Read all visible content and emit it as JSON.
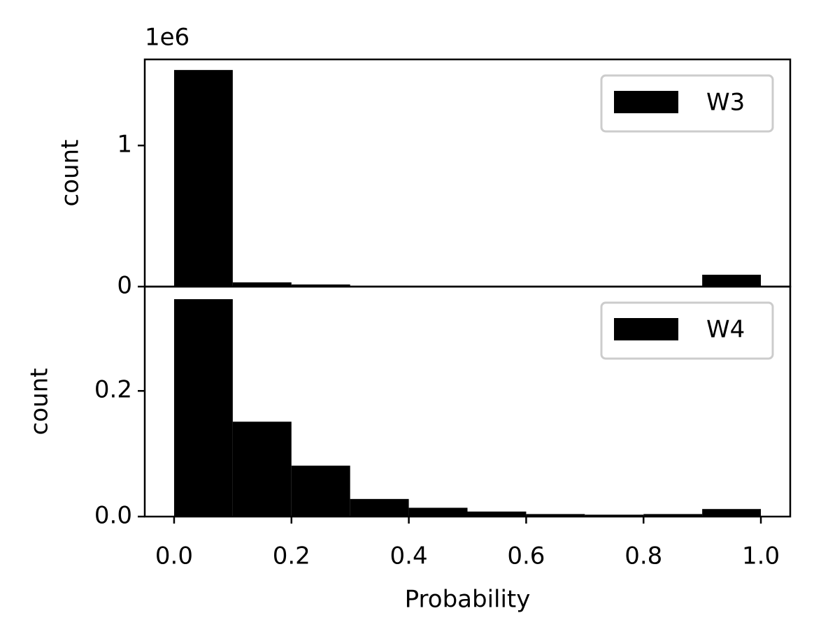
{
  "chart_data": [
    {
      "type": "histogram",
      "ylabel": "count",
      "offset_text": "1e6",
      "bins": [
        0,
        0.1,
        0.2,
        0.3,
        0.4,
        0.5,
        0.6,
        0.7,
        0.8,
        0.9,
        1.0
      ],
      "series": [
        {
          "name": "W3",
          "color": "#000000",
          "values": [
            1.535,
            0.03,
            0.015,
            0.005,
            0.002,
            0.001,
            0.001,
            0.001,
            0.005,
            0.084
          ]
        }
      ],
      "xlim": [
        -0.05,
        1.05
      ],
      "ylim": [
        0,
        1.61
      ],
      "yticks": [
        0,
        1
      ],
      "legend": "upper right"
    },
    {
      "type": "histogram",
      "ylabel": "count",
      "xlabel": "Probability",
      "bins": [
        0,
        0.1,
        0.2,
        0.3,
        0.4,
        0.5,
        0.6,
        0.7,
        0.8,
        0.9,
        1.0
      ],
      "series": [
        {
          "name": "W4",
          "color": "#000000",
          "values": [
            0.346,
            0.151,
            0.081,
            0.028,
            0.014,
            0.008,
            0.004,
            0.003,
            0.004,
            0.012
          ]
        }
      ],
      "xlim": [
        -0.05,
        1.05
      ],
      "ylim": [
        0,
        0.366
      ],
      "yticks": [
        {
          "value": 0,
          "label": "0.0"
        },
        0.2
      ],
      "xticks": [
        {
          "value": 0,
          "label": "0.0"
        },
        0.2,
        0.4,
        0.6,
        0.8,
        {
          "value": 1.0,
          "label": "1.0"
        }
      ],
      "legend": "upper right"
    }
  ]
}
